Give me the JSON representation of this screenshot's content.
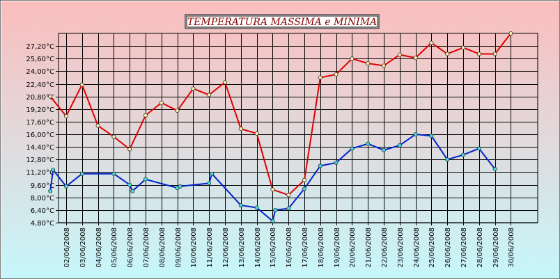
{
  "chart_data": {
    "type": "line",
    "title": "TEMPERATURA MASSIMA e MINIMA",
    "xlabel": "",
    "ylabel": "",
    "x_tick_labels": [
      "02/06/2008",
      "03/06/2008",
      "04/06/2008",
      "05/06/2008",
      "06/06/2008",
      "07/06/2008",
      "08/06/2008",
      "09/06/2008",
      "10/06/2008",
      "11/06/2008",
      "12/06/2008",
      "13/06/2008",
      "14/06/2008",
      "15/06/2008",
      "16/06/2008",
      "17/06/2008",
      "18/06/2008",
      "19/06/2008",
      "20/06/2008",
      "21/06/2008",
      "22/06/2008",
      "23/06/2008",
      "24/06/2008",
      "25/06/2008",
      "26/06/2008",
      "27/06/2008",
      "28/06/2008",
      "29/06/2008",
      "30/06/2008"
    ],
    "y_tick_labels": [
      "4,80°C",
      "6,40°C",
      "8,00°C",
      "9,60°C",
      "11,20°C",
      "12,80°C",
      "14,40°C",
      "16,00°C",
      "17,60°C",
      "19,20°C",
      "20,80°C",
      "22,40°C",
      "24,00°C",
      "25,60°C",
      "27,20°C"
    ],
    "y_tick_values": [
      4.8,
      6.4,
      8.0,
      9.6,
      11.2,
      12.8,
      14.4,
      16.0,
      17.6,
      19.2,
      20.8,
      22.4,
      24.0,
      25.6,
      27.2
    ],
    "ylim": [
      4.8,
      28.8
    ],
    "xlim": [
      "02/06/2008",
      "30/06/2008"
    ],
    "grid": true,
    "background_gradient": [
      "#fbbdbd",
      "#c6f7fb"
    ],
    "series": [
      {
        "color": "#e00000",
        "marker_color": "#f8f0b0",
        "points": [
          {
            "x": "01/06/2008",
            "y": 20.8
          },
          {
            "x": "02/06/2008",
            "y": 18.3
          },
          {
            "x": "03/06/2008",
            "y": 22.3
          },
          {
            "x": "04/06/2008",
            "y": 17.1
          },
          {
            "x": "05/06/2008",
            "y": 15.7
          },
          {
            "x": "06/06/2008",
            "y": 14.1
          },
          {
            "x": "07/06/2008",
            "y": 18.4
          },
          {
            "x": "08/06/2008",
            "y": 20.0
          },
          {
            "x": "09/06/2008",
            "y": 19.0
          },
          {
            "x": "10/06/2008",
            "y": 21.8
          },
          {
            "x": "11/06/2008",
            "y": 21.0
          },
          {
            "x": "12/06/2008",
            "y": 22.6
          },
          {
            "x": "13/06/2008",
            "y": 16.7
          },
          {
            "x": "14/06/2008",
            "y": 16.1
          },
          {
            "x": "15/06/2008",
            "y": 9.0
          },
          {
            "x": "16/06/2008",
            "y": 8.3
          },
          {
            "x": "17/06/2008",
            "y": 10.2
          },
          {
            "x": "18/06/2008",
            "y": 23.2
          },
          {
            "x": "19/06/2008",
            "y": 23.6
          },
          {
            "x": "20/06/2008",
            "y": 25.6
          },
          {
            "x": "21/06/2008",
            "y": 25.0
          },
          {
            "x": "22/06/2008",
            "y": 24.7
          },
          {
            "x": "23/06/2008",
            "y": 26.1
          },
          {
            "x": "24/06/2008",
            "y": 25.7
          },
          {
            "x": "25/06/2008",
            "y": 27.6
          },
          {
            "x": "26/06/2008",
            "y": 26.2
          },
          {
            "x": "27/06/2008",
            "y": 27.0
          },
          {
            "x": "28/06/2008",
            "y": 26.2
          },
          {
            "x": "29/06/2008",
            "y": 26.2
          },
          {
            "x": "30/06/2008",
            "y": 28.8
          }
        ]
      },
      {
        "color": "#0022cc",
        "marker_color": "#40e0e0",
        "points": [
          {
            "x": "01/06/2008",
            "y": 8.8
          },
          {
            "x": "01/06/2008",
            "y": 11.5
          },
          {
            "x": "02/06/2008",
            "y": 9.4
          },
          {
            "x": "03/06/2008",
            "y": 11.0
          },
          {
            "x": "05/06/2008",
            "y": 11.0
          },
          {
            "x": "06/06/2008",
            "y": 9.6
          },
          {
            "x": "06/06/2008",
            "y": 8.8
          },
          {
            "x": "07/06/2008",
            "y": 10.3
          },
          {
            "x": "09/06/2008",
            "y": 9.2
          },
          {
            "x": "09/06/2008",
            "y": 9.4
          },
          {
            "x": "11/06/2008",
            "y": 9.8
          },
          {
            "x": "11/06/2008",
            "y": 11.0
          },
          {
            "x": "13/06/2008",
            "y": 7.0
          },
          {
            "x": "14/06/2008",
            "y": 6.7
          },
          {
            "x": "15/06/2008",
            "y": 5.0
          },
          {
            "x": "15/06/2008",
            "y": 6.4
          },
          {
            "x": "16/06/2008",
            "y": 6.6
          },
          {
            "x": "17/06/2008",
            "y": 9.1
          },
          {
            "x": "18/06/2008",
            "y": 12.0
          },
          {
            "x": "19/06/2008",
            "y": 12.4
          },
          {
            "x": "20/06/2008",
            "y": 14.2
          },
          {
            "x": "21/06/2008",
            "y": 14.8
          },
          {
            "x": "22/06/2008",
            "y": 14.0
          },
          {
            "x": "23/06/2008",
            "y": 14.6
          },
          {
            "x": "24/06/2008",
            "y": 16.0
          },
          {
            "x": "25/06/2008",
            "y": 15.8
          },
          {
            "x": "26/06/2008",
            "y": 12.8
          },
          {
            "x": "27/06/2008",
            "y": 13.4
          },
          {
            "x": "28/06/2008",
            "y": 14.2
          },
          {
            "x": "29/06/2008",
            "y": 11.6
          }
        ]
      }
    ]
  }
}
